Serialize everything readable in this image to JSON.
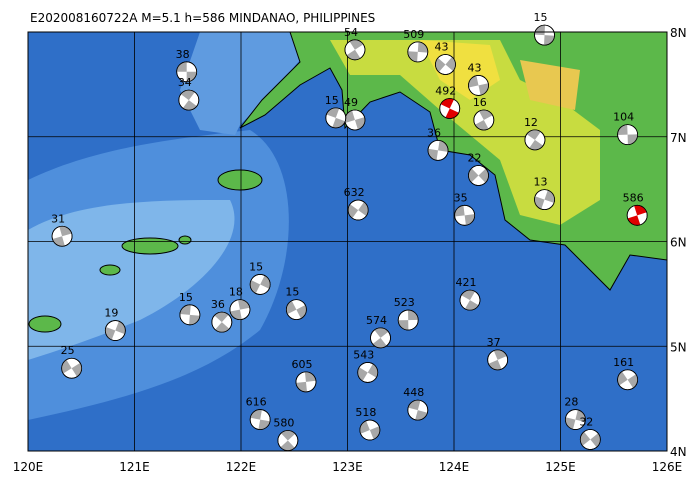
{
  "map": {
    "title": "E202008160722A  M=5.1  h=586  MINDANAO, PHILIPPINES",
    "xlim": [
      120,
      126
    ],
    "ylim": [
      4,
      8
    ],
    "xticks": [
      {
        "value": 120,
        "label": "120E"
      },
      {
        "value": 121,
        "label": "121E"
      },
      {
        "value": 122,
        "label": "122E"
      },
      {
        "value": 123,
        "label": "123E"
      },
      {
        "value": 124,
        "label": "124E"
      },
      {
        "value": 125,
        "label": "125E"
      },
      {
        "value": 126,
        "label": "126E"
      }
    ],
    "yticks": [
      {
        "value": 4,
        "label": "4N"
      },
      {
        "value": 5,
        "label": "5N"
      },
      {
        "value": 6,
        "label": "6N"
      },
      {
        "value": 7,
        "label": "7N"
      },
      {
        "value": 8,
        "label": "8N"
      }
    ],
    "grid": true,
    "event_color": "#a8a8a8",
    "events": [
      {
        "lon": 121.49,
        "lat": 7.62,
        "depth": 38
      },
      {
        "lon": 121.51,
        "lat": 7.35,
        "depth": 34
      },
      {
        "lon": 120.32,
        "lat": 6.05,
        "depth": 31
      },
      {
        "lon": 120.82,
        "lat": 5.15,
        "depth": 19
      },
      {
        "lon": 120.41,
        "lat": 4.79,
        "depth": 25
      },
      {
        "lon": 121.52,
        "lat": 5.3,
        "depth": 15
      },
      {
        "lon": 121.82,
        "lat": 5.23,
        "depth": 36
      },
      {
        "lon": 121.99,
        "lat": 5.35,
        "depth": 18
      },
      {
        "lon": 122.18,
        "lat": 5.59,
        "depth": 15
      },
      {
        "lon": 122.52,
        "lat": 5.35,
        "depth": 15
      },
      {
        "lon": 122.18,
        "lat": 4.3,
        "depth": 616
      },
      {
        "lon": 122.44,
        "lat": 4.1,
        "depth": 580
      },
      {
        "lon": 122.61,
        "lat": 4.66,
        "depth": 605
      },
      {
        "lon": 123.19,
        "lat": 4.75,
        "depth": 543
      },
      {
        "lon": 123.21,
        "lat": 4.2,
        "depth": 518
      },
      {
        "lon": 123.66,
        "lat": 4.39,
        "depth": 448
      },
      {
        "lon": 123.31,
        "lat": 5.08,
        "depth": 574
      },
      {
        "lon": 123.57,
        "lat": 5.25,
        "depth": 523
      },
      {
        "lon": 123.1,
        "lat": 6.3,
        "depth": 632
      },
      {
        "lon": 123.07,
        "lat": 7.16,
        "depth": 49
      },
      {
        "lon": 122.89,
        "lat": 7.18,
        "depth": 15
      },
      {
        "lon": 123.07,
        "lat": 7.83,
        "depth": 54
      },
      {
        "lon": 123.66,
        "lat": 7.81,
        "depth": 509
      },
      {
        "lon": 123.92,
        "lat": 7.69,
        "depth": 43
      },
      {
        "lon": 124.23,
        "lat": 7.49,
        "depth": 43
      },
      {
        "lon": 123.96,
        "lat": 7.27,
        "depth": 492,
        "color": "#e00000"
      },
      {
        "lon": 124.28,
        "lat": 7.16,
        "depth": 16
      },
      {
        "lon": 123.85,
        "lat": 6.87,
        "depth": 36
      },
      {
        "lon": 124.23,
        "lat": 6.63,
        "depth": 22
      },
      {
        "lon": 124.1,
        "lat": 6.25,
        "depth": 35
      },
      {
        "lon": 124.15,
        "lat": 5.44,
        "depth": 421
      },
      {
        "lon": 124.41,
        "lat": 4.87,
        "depth": 37
      },
      {
        "lon": 125.14,
        "lat": 4.3,
        "depth": 28
      },
      {
        "lon": 125.28,
        "lat": 4.11,
        "depth": 32
      },
      {
        "lon": 125.63,
        "lat": 7.02,
        "depth": 104
      },
      {
        "lon": 124.76,
        "lat": 6.97,
        "depth": 12
      },
      {
        "lon": 125.72,
        "lat": 6.25,
        "depth": 586,
        "color": "#e00000"
      },
      {
        "lon": 124.85,
        "lat": 6.4,
        "depth": 13
      },
      {
        "lon": 125.63,
        "lat": 4.68,
        "depth": 161
      },
      {
        "lon": 124.85,
        "lat": 7.97,
        "depth": 15
      }
    ]
  }
}
